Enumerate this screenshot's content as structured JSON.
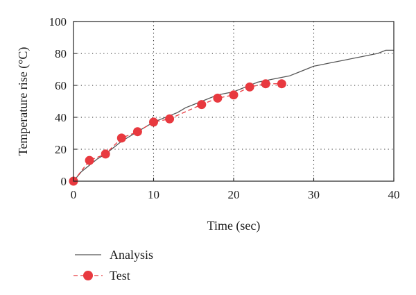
{
  "chart_data": {
    "type": "line",
    "xlabel": "Time (sec)",
    "ylabel": "Temperature rise (°C)",
    "xlim": [
      0,
      40
    ],
    "ylim": [
      0,
      100
    ],
    "xticks": [
      0,
      10,
      20,
      30,
      40
    ],
    "yticks": [
      0,
      20,
      40,
      60,
      80,
      100
    ],
    "grid": "dotted",
    "legend": "below-left",
    "series": [
      {
        "name": "Analysis",
        "style": "solid-line",
        "color": "#555555",
        "points": [
          [
            0,
            0
          ],
          [
            0.5,
            3
          ],
          [
            1,
            6
          ],
          [
            2,
            10
          ],
          [
            3,
            14
          ],
          [
            4,
            17
          ],
          [
            5,
            21
          ],
          [
            6,
            25
          ],
          [
            7,
            28
          ],
          [
            8,
            31
          ],
          [
            9,
            34
          ],
          [
            10,
            37
          ],
          [
            11,
            39
          ],
          [
            12,
            41
          ],
          [
            13,
            43
          ],
          [
            14,
            46
          ],
          [
            15,
            48
          ],
          [
            16,
            50
          ],
          [
            17,
            52
          ],
          [
            18,
            54
          ],
          [
            19,
            55
          ],
          [
            20,
            56
          ],
          [
            21,
            58
          ],
          [
            22,
            60
          ],
          [
            23,
            62
          ],
          [
            24,
            63
          ],
          [
            25,
            64
          ],
          [
            26,
            65
          ],
          [
            27,
            66
          ],
          [
            28,
            68
          ],
          [
            29,
            70
          ],
          [
            30,
            72
          ],
          [
            31,
            73
          ],
          [
            32,
            74
          ],
          [
            33,
            75
          ],
          [
            34,
            76
          ],
          [
            35,
            77
          ],
          [
            36,
            78
          ],
          [
            37,
            79
          ],
          [
            38,
            80
          ],
          [
            39,
            82
          ],
          [
            40,
            82
          ]
        ]
      },
      {
        "name": "Test",
        "style": "dashed-line-with-markers",
        "color": "#e8393f",
        "points": [
          [
            0,
            0
          ],
          [
            2,
            13
          ],
          [
            4,
            17
          ],
          [
            6,
            27
          ],
          [
            8,
            31
          ],
          [
            10,
            37
          ],
          [
            12,
            39
          ],
          [
            16,
            48
          ],
          [
            18,
            52
          ],
          [
            20,
            54
          ],
          [
            22,
            59
          ],
          [
            24,
            61
          ],
          [
            26,
            61
          ]
        ]
      }
    ]
  }
}
